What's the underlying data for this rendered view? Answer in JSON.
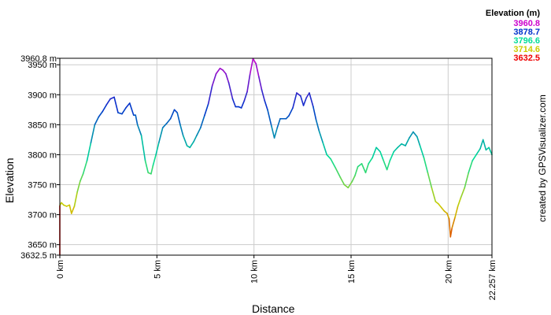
{
  "chart_data": {
    "type": "line",
    "title": "",
    "xlabel": "Distance",
    "ylabel": "Elevation",
    "xlim": [
      0,
      22.257
    ],
    "ylim": [
      3632.5,
      3960.8
    ],
    "x_ticks": [
      {
        "v": 0,
        "label": "0 km"
      },
      {
        "v": 5,
        "label": "5 km"
      },
      {
        "v": 10,
        "label": "10 km"
      },
      {
        "v": 15,
        "label": "15 km"
      },
      {
        "v": 20,
        "label": "20 km"
      },
      {
        "v": 22.257,
        "label": "22.257 km"
      }
    ],
    "y_ticks": [
      {
        "v": 3632.5,
        "label": "3632.5 m"
      },
      {
        "v": 3650,
        "label": "3650 m"
      },
      {
        "v": 3700,
        "label": "3700 m"
      },
      {
        "v": 3750,
        "label": "3750 m"
      },
      {
        "v": 3800,
        "label": "3800 m"
      },
      {
        "v": 3850,
        "label": "3850 m"
      },
      {
        "v": 3900,
        "label": "3900 m"
      },
      {
        "v": 3950,
        "label": "3950 m"
      },
      {
        "v": 3960.8,
        "label": "3960.8 m"
      }
    ],
    "grid": true,
    "colorscale": {
      "title": "Elevation (m)",
      "stops": [
        {
          "label": "3960.8",
          "value": 3960.8,
          "color": "#cc00cc"
        },
        {
          "label": "3878.7",
          "value": 3878.7,
          "color": "#0033cc"
        },
        {
          "label": "3796.6",
          "value": 3796.6,
          "color": "#00dd99"
        },
        {
          "label": "3714.6",
          "value": 3714.6,
          "color": "#cccc00"
        },
        {
          "label": "3632.5",
          "value": 3632.5,
          "color": "#ee0000"
        }
      ]
    },
    "series": [
      {
        "x": [
          0,
          0.08,
          0.2,
          0.35,
          0.5,
          0.6,
          0.75,
          0.9,
          1.05,
          1.2,
          1.4,
          1.6,
          1.8,
          2.0,
          2.2,
          2.4,
          2.6,
          2.8,
          3.0,
          3.2,
          3.4,
          3.6,
          3.8,
          3.9,
          4.0,
          4.2,
          4.4,
          4.55,
          4.7,
          4.8,
          4.95,
          5.1,
          5.3,
          5.5,
          5.7,
          5.9,
          6.05,
          6.2,
          6.35,
          6.55,
          6.7,
          6.9,
          7.05,
          7.25,
          7.45,
          7.65,
          7.85,
          8.05,
          8.25,
          8.4,
          8.55,
          8.7,
          8.9,
          9.05,
          9.2,
          9.35,
          9.5,
          9.65,
          9.8,
          9.95,
          10.1,
          10.25,
          10.4,
          10.55,
          10.7,
          10.9,
          11.05,
          11.2,
          11.35,
          11.5,
          11.65,
          11.8,
          12.0,
          12.2,
          12.4,
          12.55,
          12.7,
          12.85,
          13.05,
          13.2,
          13.35,
          13.55,
          13.75,
          13.95,
          14.2,
          14.45,
          14.65,
          14.85,
          15.05,
          15.2,
          15.35,
          15.55,
          15.75,
          15.9,
          16.1,
          16.3,
          16.5,
          16.65,
          16.85,
          17.0,
          17.2,
          17.4,
          17.6,
          17.8,
          18.0,
          18.2,
          18.4,
          18.55,
          18.75,
          18.95,
          19.15,
          19.35,
          19.5,
          19.65,
          19.8,
          19.95,
          20.05,
          20.12,
          20.2,
          20.35,
          20.5,
          20.65,
          20.85,
          21.05,
          21.25,
          21.45,
          21.65,
          21.8,
          21.95,
          22.1,
          22.257
        ],
        "y": [
          3715,
          3720,
          3716,
          3714,
          3716,
          3702,
          3714,
          3738,
          3756,
          3768,
          3790,
          3820,
          3850,
          3863,
          3872,
          3883,
          3893,
          3896,
          3870,
          3868,
          3878,
          3886,
          3866,
          3866,
          3850,
          3832,
          3790,
          3770,
          3768,
          3782,
          3800,
          3820,
          3845,
          3852,
          3860,
          3875,
          3870,
          3850,
          3832,
          3815,
          3812,
          3822,
          3832,
          3845,
          3865,
          3885,
          3915,
          3935,
          3944,
          3941,
          3935,
          3920,
          3893,
          3880,
          3880,
          3878,
          3890,
          3905,
          3935,
          3960,
          3952,
          3930,
          3908,
          3890,
          3875,
          3848,
          3828,
          3845,
          3860,
          3860,
          3860,
          3865,
          3878,
          3903,
          3898,
          3882,
          3895,
          3903,
          3880,
          3858,
          3840,
          3820,
          3800,
          3793,
          3778,
          3762,
          3750,
          3745,
          3755,
          3765,
          3780,
          3785,
          3770,
          3785,
          3795,
          3812,
          3805,
          3792,
          3775,
          3790,
          3805,
          3812,
          3818,
          3815,
          3828,
          3838,
          3830,
          3815,
          3795,
          3770,
          3745,
          3722,
          3718,
          3712,
          3706,
          3702,
          3693,
          3663,
          3678,
          3695,
          3714,
          3728,
          3745,
          3770,
          3790,
          3800,
          3810,
          3825,
          3808,
          3812,
          3800
        ]
      }
    ]
  },
  "credit": "created by GPSVisualizer.com"
}
